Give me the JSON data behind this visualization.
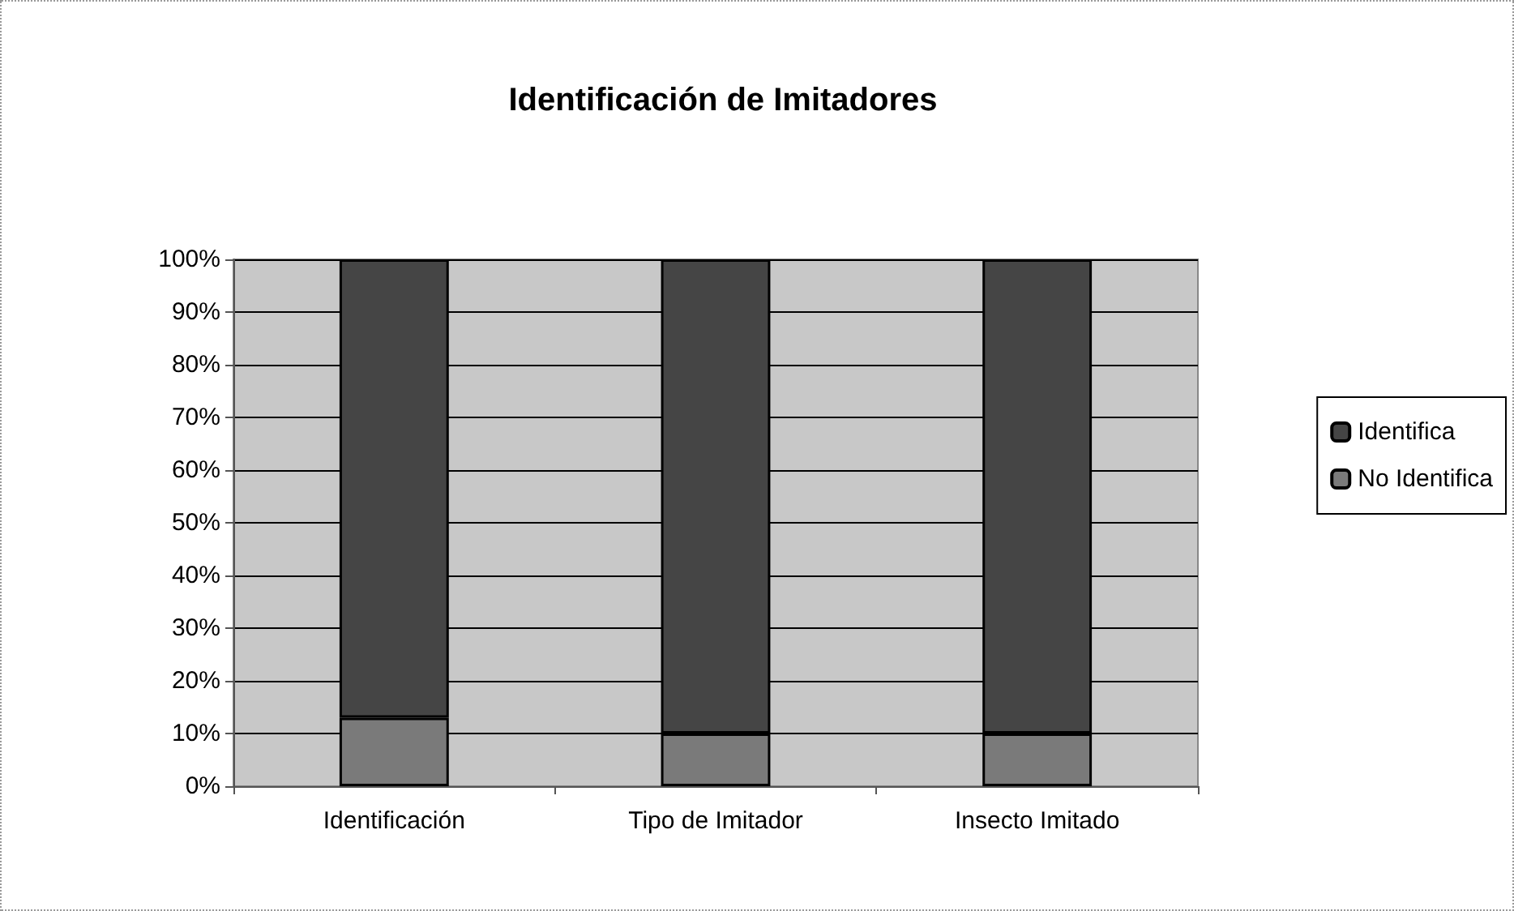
{
  "chart_data": {
    "type": "bar",
    "title": "Identificación de Imitadores",
    "categories": [
      "Identificación",
      "Tipo de Imitador",
      "Insecto Imitado"
    ],
    "series": [
      {
        "name": "No Identifica",
        "color": "#7a7a7a",
        "values": [
          13,
          10,
          10
        ]
      },
      {
        "name": "Identifica",
        "color": "#454545",
        "values": [
          87,
          90,
          90
        ]
      }
    ],
    "stacked": true,
    "ylim": [
      0,
      100
    ],
    "yticks": [
      {
        "value": 0,
        "label": "0%"
      },
      {
        "value": 10,
        "label": "10%"
      },
      {
        "value": 20,
        "label": "20%"
      },
      {
        "value": 30,
        "label": "30%"
      },
      {
        "value": 40,
        "label": "40%"
      },
      {
        "value": 50,
        "label": "50%"
      },
      {
        "value": 60,
        "label": "60%"
      },
      {
        "value": 70,
        "label": "70%"
      },
      {
        "value": 80,
        "label": "80%"
      },
      {
        "value": 90,
        "label": "90%"
      },
      {
        "value": 100,
        "label": "100%"
      }
    ],
    "grid": "y",
    "legend": "right"
  }
}
